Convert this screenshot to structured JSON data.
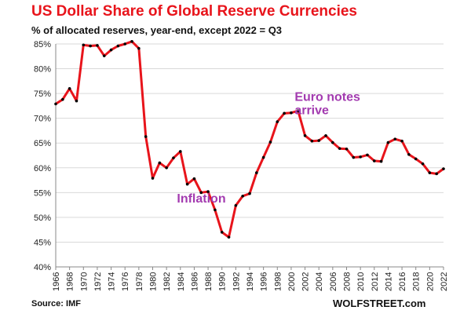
{
  "header": {
    "title": "US Dollar Share of Global  Reserve Currencies",
    "subtitle": "% of allocated reserves, year-end, except 2022 = Q3"
  },
  "footer": {
    "source": "Source: IMF",
    "brand": "WOLFSTREET.com"
  },
  "colors": {
    "title": "#e8141b",
    "line": "#e8141b",
    "points": "#000000",
    "annotation": "#a33bb0",
    "grid": "#d9d9d9"
  },
  "chart_data": {
    "type": "line",
    "title": "US Dollar Share of Global  Reserve Currencies",
    "subtitle": "% of allocated reserves, year-end, except 2022 = Q3",
    "xlabel": "",
    "ylabel": "",
    "ylim": [
      40,
      85
    ],
    "xlim": [
      1966,
      2022
    ],
    "grid": "horizontal",
    "y_ticks": [
      40,
      45,
      50,
      55,
      60,
      65,
      70,
      75,
      80,
      85
    ],
    "y_tick_labels": [
      "40%",
      "45%",
      "50%",
      "55%",
      "60%",
      "65%",
      "70%",
      "75%",
      "80%",
      "85%"
    ],
    "x_ticks": [
      1966,
      1968,
      1970,
      1972,
      1974,
      1976,
      1978,
      1980,
      1982,
      1984,
      1986,
      1988,
      1990,
      1992,
      1994,
      1996,
      1998,
      2000,
      2002,
      2004,
      2006,
      2008,
      2010,
      2012,
      2014,
      2016,
      2018,
      2020,
      2022
    ],
    "series": [
      {
        "x": [
          1966,
          1967,
          1968,
          1969,
          1970,
          1971,
          1972,
          1973,
          1974,
          1975,
          1976,
          1977,
          1978,
          1979,
          1980,
          1981,
          1982,
          1983,
          1984,
          1985,
          1986,
          1987,
          1988,
          1989,
          1990,
          1991,
          1992,
          1993,
          1994,
          1995,
          1996,
          1997,
          1998,
          1999,
          2000,
          2001,
          2002,
          2003,
          2004,
          2005,
          2006,
          2007,
          2008,
          2009,
          2010,
          2011,
          2012,
          2013,
          2014,
          2015,
          2016,
          2017,
          2018,
          2019,
          2020,
          2021,
          2022
        ],
        "values": [
          72.9,
          73.8,
          76.0,
          73.5,
          84.8,
          84.6,
          84.7,
          82.6,
          83.8,
          84.6,
          85.0,
          85.5,
          84.1,
          66.3,
          57.9,
          61.0,
          60.0,
          62.0,
          63.3,
          56.7,
          57.8,
          55.0,
          55.2,
          51.5,
          47.0,
          46.0,
          52.4,
          54.3,
          54.8,
          59.0,
          62.1,
          65.2,
          69.3,
          71.0,
          71.1,
          71.5,
          66.5,
          65.4,
          65.5,
          66.5,
          65.1,
          63.9,
          63.8,
          62.1,
          62.2,
          62.6,
          61.4,
          61.3,
          65.1,
          65.8,
          65.4,
          62.7,
          61.8,
          60.8,
          59.0,
          58.8,
          59.8
        ]
      }
    ],
    "annotations": [
      {
        "text": "Inflation",
        "x": 1983.5,
        "y": 53.0
      },
      {
        "text": "Euro notes",
        "x": 2000.5,
        "y": 73.5
      },
      {
        "text": "arrive",
        "x": 2000.5,
        "y": 70.8
      }
    ]
  }
}
